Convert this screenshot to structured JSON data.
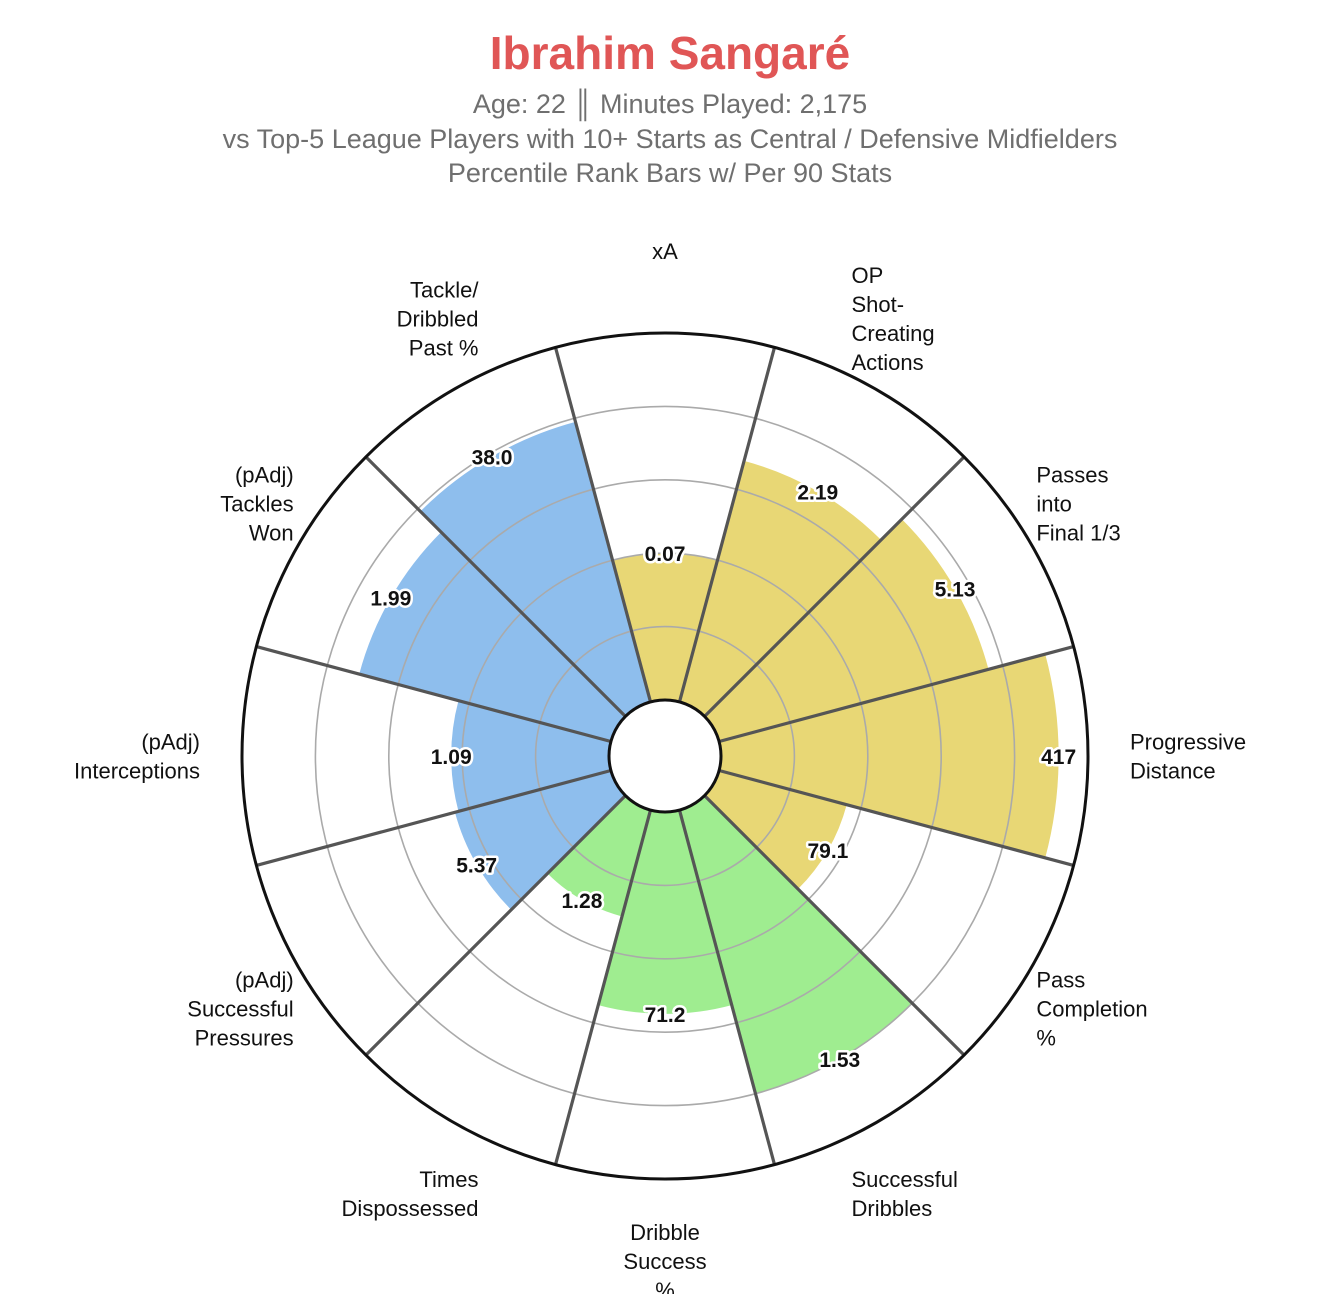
{
  "header": {
    "title": "Ibrahim Sangaré",
    "subtitle_line1": "Age: 22 ║ Minutes Played: 2,175",
    "subtitle_line2": "vs Top-5 League Players with 10+ Starts as Central / Defensive Midfielders",
    "subtitle_line3": "Percentile Rank Bars w/ Per 90 Stats"
  },
  "colors": {
    "title": "#e05656",
    "attacking": "#e8d775",
    "possession": "#9fed90",
    "defending": "#8ebeed",
    "divider": "#555555",
    "ring": "#aaaaaa"
  },
  "chart_data": {
    "type": "polar-bar",
    "title": "Ibrahim Sangaré",
    "value_scale": "percentile",
    "rlim": [
      0,
      100
    ],
    "ring_levels": [
      20,
      40,
      60,
      80,
      100
    ],
    "categories": [
      {
        "lines": [
          "xA"
        ],
        "value_label": "0.07",
        "percentile": 40,
        "group": "attacking"
      },
      {
        "lines": [
          "OP",
          "Shot-",
          "Creating",
          "Actions"
        ],
        "value_label": "2.19",
        "percentile": 68,
        "group": "attacking"
      },
      {
        "lines": [
          "Passes",
          "into",
          "Final 1/3"
        ],
        "value_label": "5.13",
        "percentile": 76,
        "group": "attacking"
      },
      {
        "lines": [
          "Progressive",
          "Distance"
        ],
        "value_label": "417",
        "percentile": 92,
        "group": "attacking"
      },
      {
        "lines": [
          "Pass",
          "Completion",
          "%"
        ],
        "value_label": "79.1",
        "percentile": 36,
        "group": "attacking"
      },
      {
        "lines": [
          "Successful",
          "Dribbles"
        ],
        "value_label": "1.53",
        "percentile": 80,
        "group": "possession"
      },
      {
        "lines": [
          "Dribble",
          "Success",
          "%"
        ],
        "value_label": "71.2",
        "percentile": 55,
        "group": "possession"
      },
      {
        "lines": [
          "Times",
          "Dispossessed"
        ],
        "value_label": "1.28",
        "percentile": 30,
        "group": "possession"
      },
      {
        "lines": [
          "(pAdj)",
          "Successful",
          "Pressures"
        ],
        "value_label": "5.37",
        "percentile": 44,
        "group": "defending"
      },
      {
        "lines": [
          "(pAdj)",
          "Interceptions"
        ],
        "value_label": "1.09",
        "percentile": 43,
        "group": "defending"
      },
      {
        "lines": [
          "(pAdj)",
          "Tackles",
          "Won"
        ],
        "value_label": "1.99",
        "percentile": 71,
        "group": "defending"
      },
      {
        "lines": [
          "Tackle/",
          "Dribbled",
          "Past %"
        ],
        "value_label": "38.0",
        "percentile": 79,
        "group": "defending"
      }
    ]
  }
}
